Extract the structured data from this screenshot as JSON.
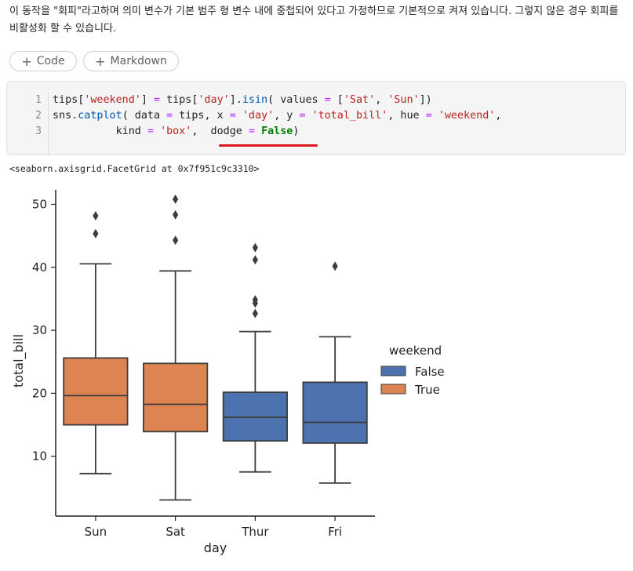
{
  "markdown": {
    "text": "이 동작을 \"회피\"라고하며 의미 변수가 기본 범주 형 변수 내에 중첩되어 있다고 가정하므로 기본적으로 켜져 있습니다. 그렇지 않은 경우 회피를 비활성화 할 수 있습니다."
  },
  "toolbar": {
    "add_code_label": "Code",
    "add_markdown_label": "Markdown",
    "plus_icon": "plus-icon"
  },
  "code_cell": {
    "line_numbers": [
      "1",
      "2",
      "3"
    ],
    "line1": {
      "a": "tips[",
      "b": "'weekend'",
      "c": "] ",
      "d": "=",
      "e": " tips[",
      "f": "'day'",
      "g": "].",
      "h": "isin",
      "i": "( values ",
      "j": "=",
      "k": " [",
      "l": "'Sat'",
      "m": ", ",
      "n": "'Sun'",
      "o": "])"
    },
    "line2": {
      "a": "sns.",
      "b": "catplot",
      "c": "( data ",
      "d": "=",
      "e": " tips, x ",
      "f": "=",
      "g": " ",
      "h": "'day'",
      "i": ", y ",
      "j": "=",
      "k": " ",
      "l": "'total_bill'",
      "m": ", hue ",
      "n": "=",
      "o": " ",
      "p": "'weekend'",
      "q": ","
    },
    "line3": {
      "a": "          kind ",
      "b": "=",
      "c": " ",
      "d": "'box'",
      "e": ",  dodge ",
      "f": "=",
      "g": " ",
      "h": "False",
      "i": ")"
    },
    "underline_color": "#e0191f"
  },
  "output": {
    "repr": "<seaborn.axisgrid.FacetGrid at 0x7f951c9c3310>"
  },
  "chart_data": {
    "type": "box",
    "xlabel": "day",
    "ylabel": "total_bill",
    "categories": [
      "Sun",
      "Sat",
      "Thur",
      "Fri"
    ],
    "yticks": [
      10,
      20,
      30,
      40,
      50
    ],
    "ylim": [
      0.5,
      52.3
    ],
    "legend": {
      "title": "weekend",
      "placement": "right",
      "entries": [
        {
          "label": "False",
          "color": "#4c72b0"
        },
        {
          "label": "True",
          "color": "#dd8452"
        }
      ]
    },
    "boxes": [
      {
        "category": "Sun",
        "hue": "True",
        "whisker_low": 7.25,
        "q1": 14.99,
        "median": 19.63,
        "q3": 25.6,
        "whisker_high": 40.55,
        "outliers": [
          48.17,
          45.35
        ],
        "color": "#dd8452"
      },
      {
        "category": "Sat",
        "hue": "True",
        "whisker_low": 3.07,
        "q1": 13.91,
        "median": 18.24,
        "q3": 24.74,
        "whisker_high": 39.42,
        "outliers": [
          50.81,
          48.33,
          44.3
        ],
        "color": "#dd8452"
      },
      {
        "category": "Thur",
        "hue": "False",
        "whisker_low": 7.51,
        "q1": 12.44,
        "median": 16.2,
        "q3": 20.16,
        "whisker_high": 29.8,
        "outliers": [
          43.11,
          41.19,
          34.83,
          34.3,
          32.68
        ],
        "color": "#4c72b0"
      },
      {
        "category": "Fri",
        "hue": "False",
        "whisker_low": 5.75,
        "q1": 12.09,
        "median": 15.38,
        "q3": 21.75,
        "whisker_high": 28.97,
        "outliers": [
          40.17
        ],
        "color": "#4c72b0"
      }
    ]
  }
}
